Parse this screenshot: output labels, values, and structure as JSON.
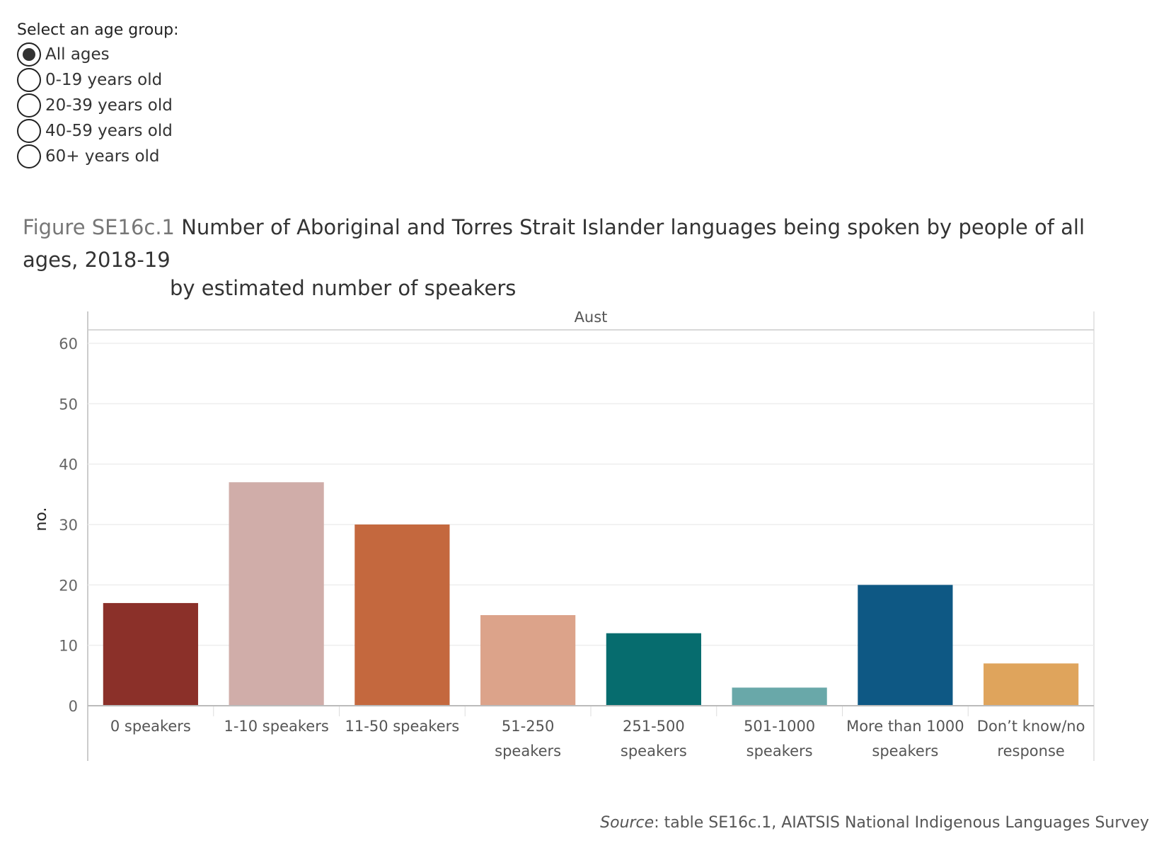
{
  "filter": {
    "label": "Select an age group:",
    "options": [
      "All ages",
      "0-19 years old",
      "20-39 years old",
      "40-59 years old",
      "60+ years old"
    ],
    "selected": "All ages"
  },
  "figure": {
    "prefix": "Figure SE16c.1",
    "title": "Number of Aboriginal and Torres Strait Islander languages being spoken by people of all ages, 2018-19",
    "subtitle": "by estimated number of speakers"
  },
  "source": {
    "label": "Source",
    "text": ": table SE16c.1, AIATSIS National Indigenous Languages Survey"
  },
  "chart_data": {
    "type": "bar",
    "panel_label": "Aust",
    "ylabel": "no.",
    "xlabel": "",
    "ylim": [
      0,
      60
    ],
    "yticks": [
      0,
      10,
      20,
      30,
      40,
      50,
      60
    ],
    "grid": true,
    "categories": [
      "0 speakers",
      "1-10 speakers",
      "11-50 speakers",
      "51-250 speakers",
      "251-500 speakers",
      "501-1000 speakers",
      "More than 1000 speakers",
      "Don’t know/no response"
    ],
    "category_lines": [
      [
        "0 speakers"
      ],
      [
        "1-10 speakers"
      ],
      [
        "11-50 speakers"
      ],
      [
        "51-250",
        "speakers"
      ],
      [
        "251-500",
        "speakers"
      ],
      [
        "501-1000",
        "speakers"
      ],
      [
        "More than 1000",
        "speakers"
      ],
      [
        "Don’t know/no",
        "response"
      ]
    ],
    "values": [
      17,
      37,
      30,
      15,
      12,
      3,
      20,
      7
    ],
    "colors": [
      "#8B3029",
      "#D0ADA9",
      "#C4683E",
      "#DCA38A",
      "#066C6E",
      "#69A8A9",
      "#0E5884",
      "#DFA45C"
    ]
  }
}
